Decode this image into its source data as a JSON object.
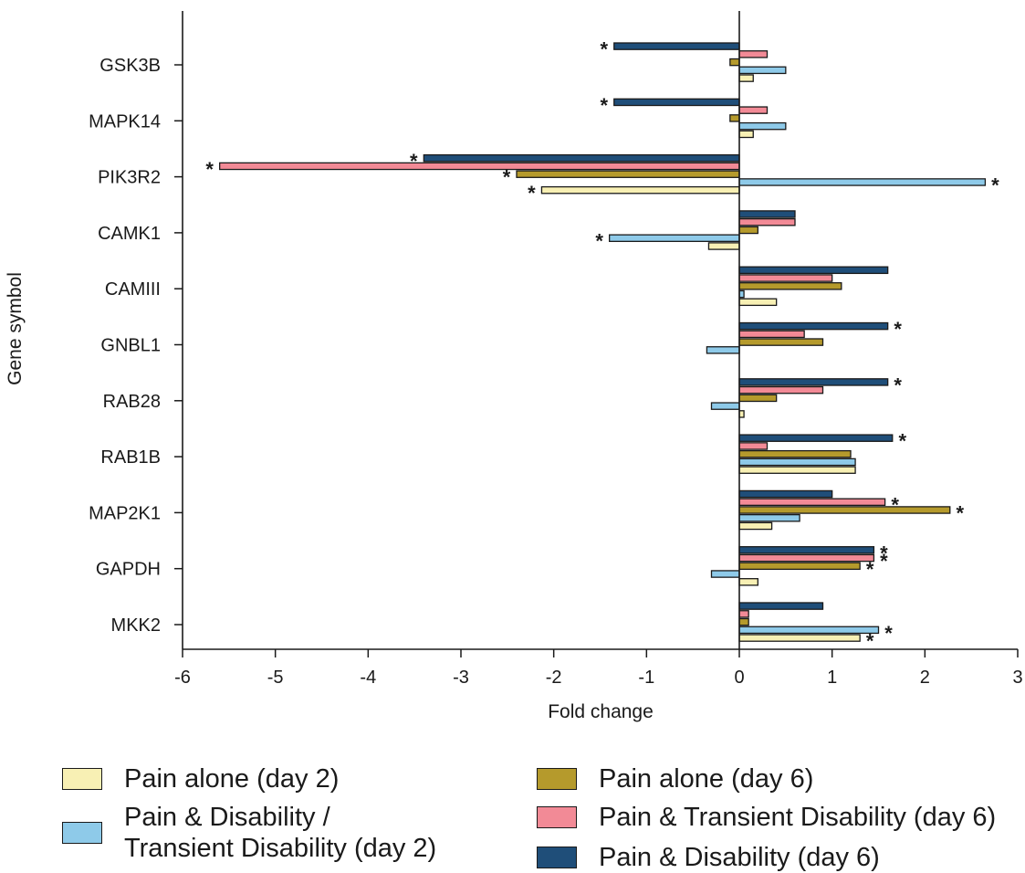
{
  "chart_data": {
    "type": "bar",
    "orientation": "horizontal",
    "title": "",
    "xlabel": "Fold change",
    "ylabel": "Gene symbol",
    "xlim": [
      -6,
      3
    ],
    "x_ticks": [
      "-6",
      "-5",
      "-4",
      "-3",
      "-2",
      "-1",
      "0",
      "1",
      "2",
      "3"
    ],
    "grid": false,
    "categories": [
      "GSK3B",
      "MAPK14",
      "PIK3R2",
      "CAMK1",
      "CAMIII",
      "GNBL1",
      "RAB28",
      "RAB1B",
      "MAP2K1",
      "GAPDH",
      "MKK2"
    ],
    "series": [
      {
        "name": "Pain & Disability (day 6)",
        "color": "#1f4e79",
        "values": [
          -1.35,
          -1.35,
          -3.4,
          0.6,
          1.6,
          1.6,
          1.6,
          1.65,
          1.0,
          1.45,
          0.9
        ],
        "significant": [
          true,
          true,
          true,
          false,
          false,
          true,
          true,
          true,
          false,
          true,
          false
        ]
      },
      {
        "name": "Pain & Transient Disability (day 6)",
        "color": "#f28a96",
        "values": [
          0.3,
          0.3,
          -5.6,
          0.6,
          1.0,
          0.7,
          0.9,
          0.3,
          1.57,
          1.45,
          0.1
        ],
        "significant": [
          false,
          false,
          true,
          false,
          false,
          false,
          false,
          false,
          true,
          true,
          false
        ]
      },
      {
        "name": "Pain alone (day 6)",
        "color": "#b59a2c",
        "values": [
          -0.1,
          -0.1,
          -2.4,
          0.2,
          1.1,
          0.9,
          0.4,
          1.2,
          2.27,
          1.3,
          0.1
        ],
        "significant": [
          false,
          false,
          true,
          false,
          false,
          false,
          false,
          false,
          true,
          true,
          false
        ]
      },
      {
        "name": "Pain & Disability / Transient Disability (day 2)",
        "color": "#8ecae9",
        "values": [
          0.5,
          0.5,
          2.65,
          -1.4,
          0.05,
          -0.35,
          -0.3,
          1.25,
          0.65,
          -0.3,
          1.5
        ],
        "significant": [
          false,
          false,
          true,
          true,
          false,
          false,
          false,
          false,
          false,
          false,
          true
        ]
      },
      {
        "name": "Pain alone (day 2)",
        "color": "#f8f0b4",
        "values": [
          0.15,
          0.15,
          -2.13,
          -0.33,
          0.4,
          0.0,
          0.05,
          1.25,
          0.35,
          0.2,
          1.3
        ],
        "significant": [
          false,
          false,
          true,
          false,
          false,
          false,
          false,
          false,
          false,
          false,
          true
        ]
      }
    ],
    "significance_marker": "*"
  },
  "legend": {
    "items": [
      {
        "label": "Pain alone (day 2)",
        "color": "#f8f0b4"
      },
      {
        "label_line1": "Pain & Disability /",
        "label_line2": "Transient Disability  (day 2)",
        "color": "#8ecae9"
      },
      {
        "label": "Pain alone (day 6)",
        "color": "#b59a2c"
      },
      {
        "label": "Pain & Transient Disability (day 6)",
        "color": "#f28a96"
      },
      {
        "label": "Pain & Disability (day 6)",
        "color": "#1f4e79"
      }
    ]
  }
}
